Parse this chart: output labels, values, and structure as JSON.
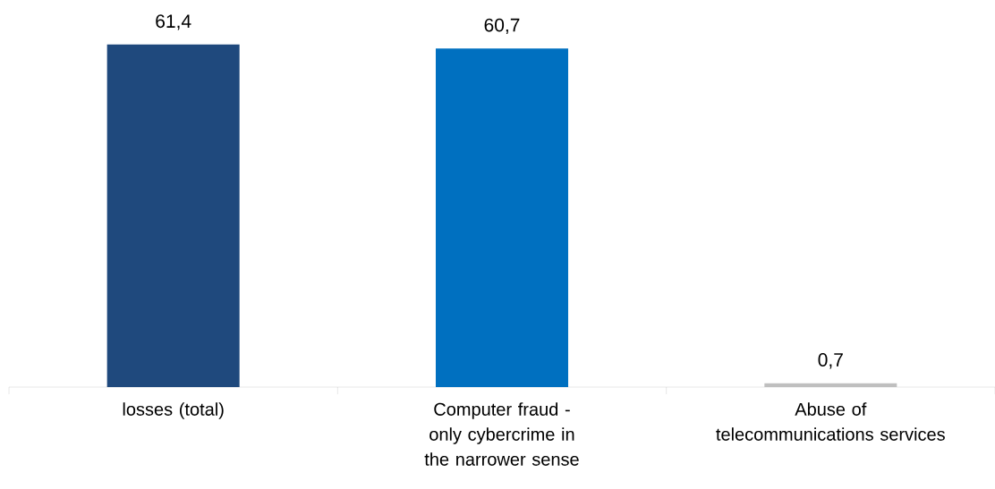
{
  "chart_data": {
    "type": "bar",
    "categories": [
      "losses (total)",
      "Computer fraud - only cybercrime in the narrower sense",
      "Abuse of telecommunications services"
    ],
    "values": [
      61.4,
      60.7,
      0.7
    ],
    "value_labels": [
      "61,4",
      "60,7",
      "0,7"
    ],
    "colors": [
      "#1f497d",
      "#0070c0",
      "#bfbfbf"
    ]
  }
}
